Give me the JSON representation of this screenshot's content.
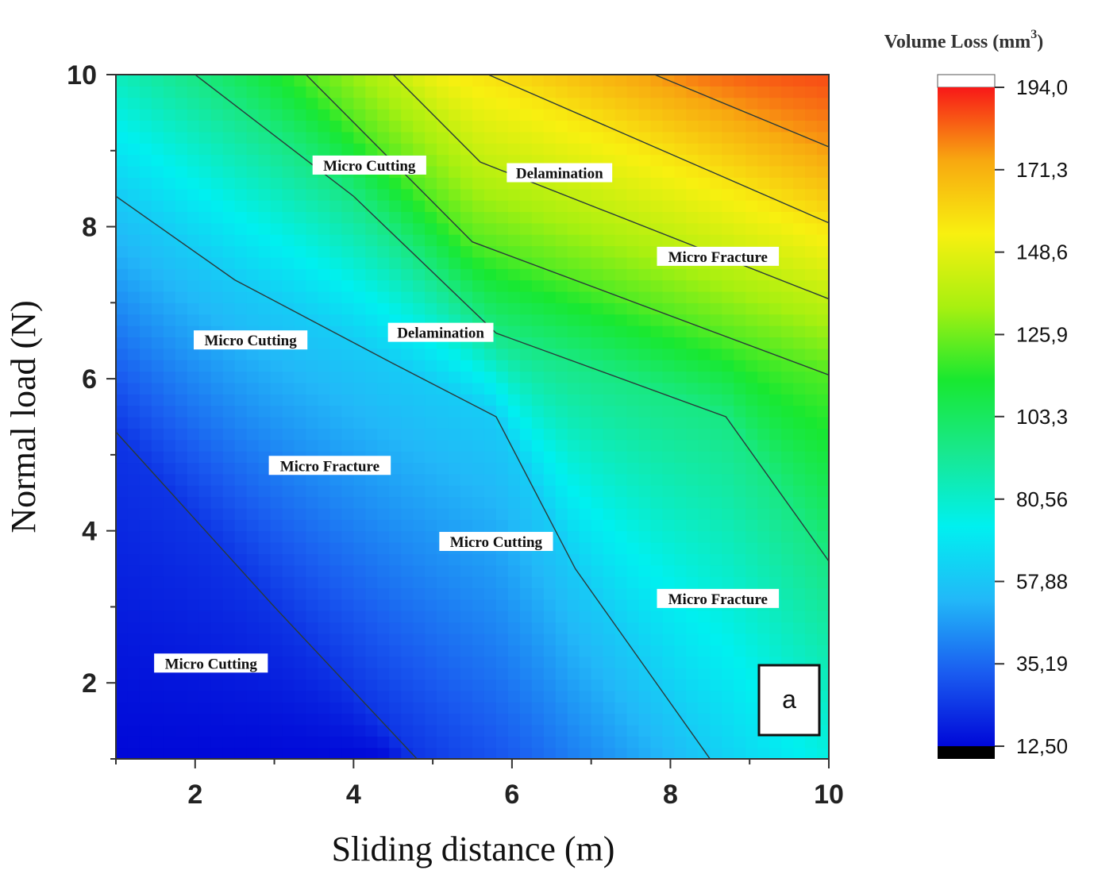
{
  "chart_data": {
    "type": "heatmap",
    "subtype": "contour",
    "xlabel": "Sliding distance (m)",
    "ylabel": "Normal load (N)",
    "xlim": [
      1,
      10
    ],
    "ylim": [
      1,
      10
    ],
    "xticks": [
      2,
      4,
      6,
      8,
      10
    ],
    "yticks": [
      2,
      4,
      6,
      8,
      10
    ],
    "colorbar": {
      "title": "Volume Loss (mm",
      "title_superscript": "3",
      "title_suffix": ")",
      "min": 12.5,
      "max": 194.0,
      "tick_values": [
        12.5,
        35.19,
        57.88,
        80.56,
        103.3,
        125.9,
        148.6,
        171.3,
        194.0
      ],
      "tick_labels": [
        "12,50",
        "35,19",
        "57,88",
        "80,56",
        "103,3",
        "125,9",
        "148,6",
        "171,3",
        "194,0"
      ],
      "colors": [
        "#0008d8",
        "#1a5cf0",
        "#22b8f8",
        "#00f0f0",
        "#18e890",
        "#18e830",
        "#a8f010",
        "#f8f010",
        "#f8a810",
        "#f81818"
      ],
      "below_color": "#000000",
      "above_color": "#ffffff"
    },
    "contour_lines": [
      [
        [
          1.0,
          5.3
        ],
        [
          3.0,
          3.0
        ],
        [
          4.8,
          1.0
        ]
      ],
      [
        [
          1.0,
          8.4
        ],
        [
          2.5,
          7.3
        ],
        [
          4.5,
          6.2
        ],
        [
          5.8,
          5.5
        ],
        [
          6.8,
          3.5
        ],
        [
          8.5,
          1.0
        ]
      ],
      [
        [
          2.0,
          10.0
        ],
        [
          4.0,
          8.4
        ],
        [
          5.8,
          6.6
        ],
        [
          8.7,
          5.5
        ],
        [
          10.0,
          3.6
        ]
      ],
      [
        [
          3.4,
          10.0
        ],
        [
          5.5,
          7.8
        ],
        [
          10.0,
          6.05
        ]
      ],
      [
        [
          4.5,
          10.0
        ],
        [
          5.6,
          8.85
        ],
        [
          10.0,
          7.05
        ]
      ],
      [
        [
          5.7,
          10.0
        ],
        [
          10.0,
          8.05
        ]
      ],
      [
        [
          7.8,
          10.0
        ],
        [
          10.0,
          9.05
        ]
      ]
    ],
    "annotations": [
      {
        "text": "Micro Cutting",
        "x": 4.2,
        "y": 8.8
      },
      {
        "text": "Delamination",
        "x": 6.6,
        "y": 8.7
      },
      {
        "text": "Micro Fracture",
        "x": 8.6,
        "y": 7.6
      },
      {
        "text": "Micro Cutting",
        "x": 2.7,
        "y": 6.5
      },
      {
        "text": "Delamination",
        "x": 5.1,
        "y": 6.6
      },
      {
        "text": "Micro Fracture",
        "x": 3.7,
        "y": 4.85
      },
      {
        "text": "Micro Cutting",
        "x": 5.8,
        "y": 3.85
      },
      {
        "text": "Micro Fracture",
        "x": 8.6,
        "y": 3.1
      },
      {
        "text": "Micro Cutting",
        "x": 2.2,
        "y": 2.25
      }
    ],
    "panel_label": "a"
  }
}
